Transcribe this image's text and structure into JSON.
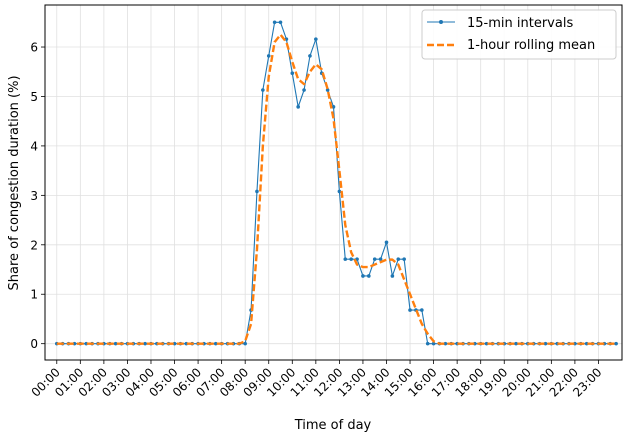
{
  "chart_data": {
    "type": "line",
    "xlabel": "Time of day",
    "ylabel": "Share of congestion duration (%)",
    "xlim": [
      -0.5,
      24.0
    ],
    "ylim": [
      -0.33,
      6.85
    ],
    "grid": true,
    "legend_position": "top-right",
    "x_tick_labels": [
      "00:00",
      "01:00",
      "02:00",
      "03:00",
      "04:00",
      "05:00",
      "06:00",
      "07:00",
      "08:00",
      "09:00",
      "10:00",
      "11:00",
      "12:00",
      "13:00",
      "14:00",
      "15:00",
      "16:00",
      "17:00",
      "18:00",
      "19:00",
      "20:00",
      "21:00",
      "22:00",
      "23:00"
    ],
    "y_ticks": [
      0,
      1,
      2,
      3,
      4,
      5,
      6
    ],
    "colors": {
      "series_15min": "#1f77b4",
      "series_rolling": "#ff7f0e",
      "grid": "#e0e0e0"
    },
    "series": [
      {
        "name": "15-min intervals",
        "style": "solid-with-markers",
        "x": [
          0,
          0.25,
          0.5,
          0.75,
          1,
          1.25,
          1.5,
          1.75,
          2,
          2.25,
          2.5,
          2.75,
          3,
          3.25,
          3.5,
          3.75,
          4,
          4.25,
          4.5,
          4.75,
          5,
          5.25,
          5.5,
          5.75,
          6,
          6.25,
          6.5,
          6.75,
          7,
          7.25,
          7.5,
          7.75,
          8,
          8.25,
          8.5,
          8.75,
          9,
          9.25,
          9.5,
          9.75,
          10,
          10.25,
          10.5,
          10.75,
          11,
          11.25,
          11.5,
          11.75,
          12,
          12.25,
          12.5,
          12.75,
          13,
          13.25,
          13.5,
          13.75,
          14,
          14.25,
          14.5,
          14.75,
          15,
          15.25,
          15.5,
          15.75,
          16,
          16.25,
          16.5,
          16.75,
          17,
          17.25,
          17.5,
          17.75,
          18,
          18.25,
          18.5,
          18.75,
          19,
          19.25,
          19.5,
          19.75,
          20,
          20.25,
          20.5,
          20.75,
          21,
          21.25,
          21.5,
          21.75,
          22,
          22.25,
          22.5,
          22.75,
          23,
          23.25,
          23.5,
          23.75
        ],
        "y": [
          0,
          0,
          0,
          0,
          0,
          0,
          0,
          0,
          0,
          0,
          0,
          0,
          0,
          0,
          0,
          0,
          0,
          0,
          0,
          0,
          0,
          0,
          0,
          0,
          0,
          0,
          0,
          0,
          0,
          0,
          0,
          0,
          0,
          0.68,
          3.08,
          5.13,
          5.82,
          6.5,
          6.5,
          6.16,
          5.47,
          4.79,
          5.13,
          5.82,
          6.16,
          5.47,
          5.13,
          4.79,
          3.08,
          1.71,
          1.71,
          1.71,
          1.37,
          1.37,
          1.71,
          1.71,
          2.05,
          1.37,
          1.71,
          1.71,
          0.68,
          0.68,
          0.68,
          0,
          0,
          0,
          0,
          0,
          0,
          0,
          0,
          0,
          0,
          0,
          0,
          0,
          0,
          0,
          0,
          0,
          0,
          0,
          0,
          0,
          0,
          0,
          0,
          0,
          0,
          0,
          0,
          0,
          0,
          0,
          0,
          0
        ]
      },
      {
        "name": "1-hour rolling mean",
        "style": "dashed",
        "x": [
          0,
          0.25,
          0.5,
          0.75,
          1,
          1.25,
          1.5,
          1.75,
          2,
          2.25,
          2.5,
          2.75,
          3,
          3.25,
          3.5,
          3.75,
          4,
          4.25,
          4.5,
          4.75,
          5,
          5.25,
          5.5,
          5.75,
          6,
          6.25,
          6.5,
          6.75,
          7,
          7.25,
          7.5,
          7.75,
          8,
          8.25,
          8.5,
          8.75,
          9,
          9.25,
          9.5,
          9.75,
          10,
          10.25,
          10.5,
          10.75,
          11,
          11.25,
          11.5,
          11.75,
          12,
          12.25,
          12.5,
          12.75,
          13,
          13.25,
          13.5,
          13.75,
          14,
          14.25,
          14.5,
          14.75,
          15,
          15.25,
          15.5,
          15.75,
          16,
          16.25,
          16.5,
          16.75,
          17,
          17.25,
          17.5,
          17.75,
          18,
          18.25,
          18.5,
          18.75,
          19,
          19.25,
          19.5,
          19.75,
          20,
          20.25,
          20.5,
          20.75,
          21,
          21.25,
          21.5,
          21.75,
          22,
          22.25,
          22.5,
          22.75,
          23,
          23.25,
          23.5,
          23.75
        ],
        "y": [
          0,
          0,
          0,
          0,
          0,
          0,
          0,
          0,
          0,
          0,
          0,
          0,
          0,
          0,
          0,
          0,
          0,
          0,
          0,
          0,
          0,
          0,
          0,
          0,
          0,
          0,
          0,
          0,
          0,
          0,
          0,
          0,
          0.05,
          0.4,
          1.9,
          4.0,
          5.4,
          6.1,
          6.25,
          6.1,
          5.7,
          5.35,
          5.25,
          5.5,
          5.65,
          5.55,
          5.15,
          4.55,
          3.5,
          2.4,
          1.85,
          1.6,
          1.55,
          1.55,
          1.6,
          1.65,
          1.7,
          1.7,
          1.6,
          1.3,
          1.0,
          0.7,
          0.4,
          0.2,
          0.05,
          0,
          0,
          0,
          0,
          0,
          0,
          0,
          0,
          0,
          0,
          0,
          0,
          0,
          0,
          0,
          0,
          0,
          0,
          0,
          0,
          0,
          0,
          0,
          0,
          0,
          0,
          0,
          0,
          0,
          0,
          0
        ]
      }
    ]
  }
}
